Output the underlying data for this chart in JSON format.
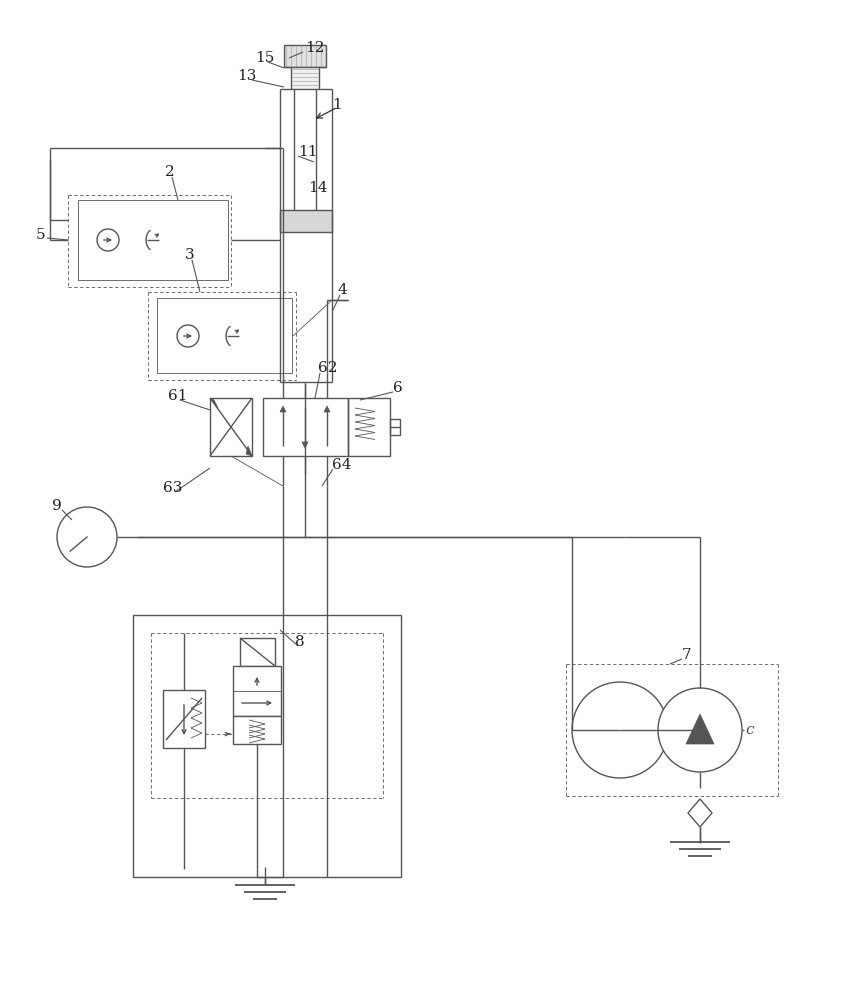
{
  "bg_color": "#ffffff",
  "lc": "#555555",
  "lw": 1.0,
  "lt": 0.6
}
